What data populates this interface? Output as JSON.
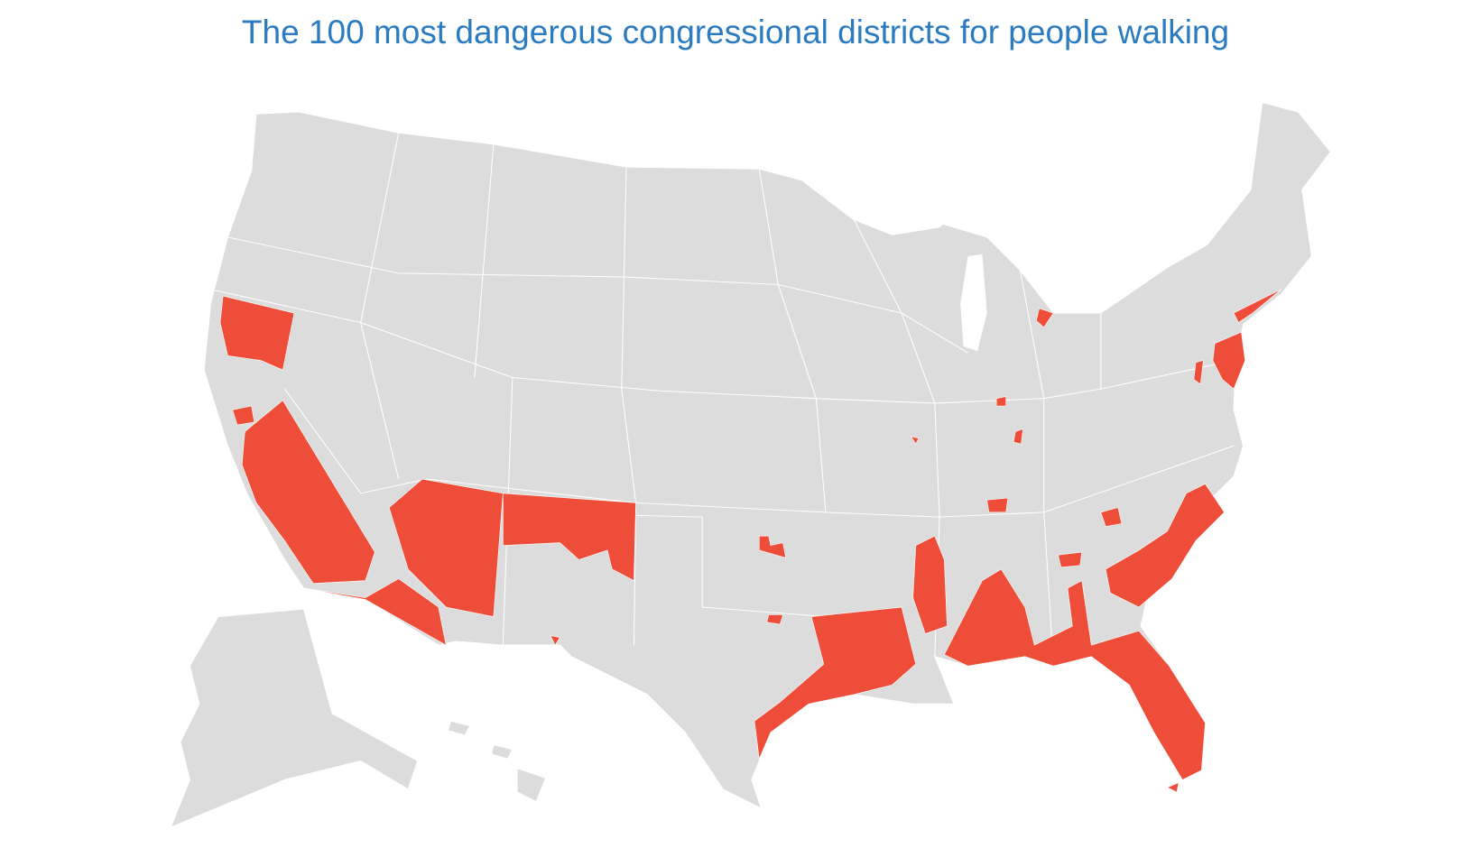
{
  "header": {
    "title": "The 100 most dangerous congressional districts for people walking"
  }
}
